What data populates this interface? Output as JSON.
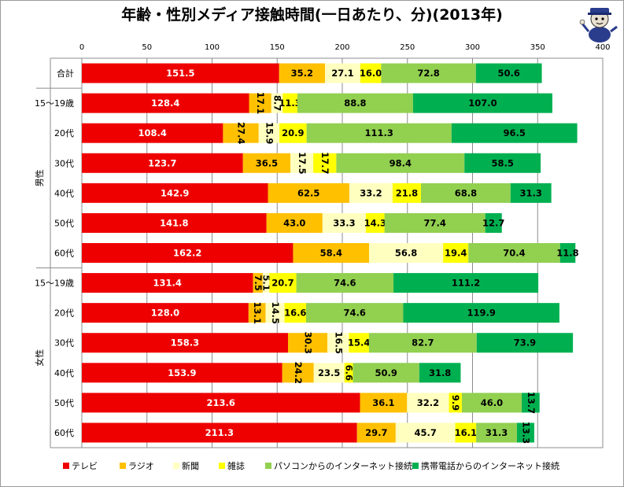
{
  "chart_data": {
    "type": "bar",
    "orientation": "horizontal",
    "stacked": true,
    "title": "年齢・性別メディア接触時間(一日あたり、分)(2013年)",
    "xlim": [
      0,
      400
    ],
    "xticks": [
      0,
      50,
      100,
      150,
      200,
      250,
      300,
      350,
      400
    ],
    "grid": true,
    "legend_position": "bottom",
    "groups": [
      {
        "label": "",
        "rows": [
          0
        ]
      },
      {
        "label": "男性",
        "rows": [
          1,
          2,
          3,
          4,
          5,
          6
        ]
      },
      {
        "label": "女性",
        "rows": [
          7,
          8,
          9,
          10,
          11,
          12
        ]
      }
    ],
    "categories": [
      "合計",
      "15〜19歳",
      "20代",
      "30代",
      "40代",
      "50代",
      "60代",
      "15〜19歳",
      "20代",
      "30代",
      "40代",
      "50代",
      "60代"
    ],
    "series": [
      {
        "name": "テレビ",
        "color": "#ee0000",
        "label_color": "#ffffff",
        "values": [
          151.5,
          128.4,
          108.4,
          123.7,
          142.9,
          141.8,
          162.2,
          131.4,
          128.0,
          158.3,
          153.9,
          213.6,
          211.3
        ]
      },
      {
        "name": "ラジオ",
        "color": "#ffc000",
        "label_color": "#000000",
        "values": [
          35.2,
          17.1,
          27.4,
          36.5,
          62.5,
          43.0,
          58.4,
          7.5,
          13.1,
          30.3,
          24.2,
          36.1,
          29.7
        ]
      },
      {
        "name": "新聞",
        "color": "#ffffc0",
        "label_color": "#000000",
        "values": [
          27.1,
          8.7,
          15.9,
          17.5,
          33.2,
          33.3,
          56.8,
          5.1,
          14.5,
          16.5,
          23.5,
          32.2,
          45.7
        ]
      },
      {
        "name": "雑誌",
        "color": "#ffff00",
        "label_color": "#000000",
        "values": [
          16.0,
          11.3,
          20.9,
          17.7,
          21.8,
          14.3,
          19.4,
          20.7,
          16.6,
          15.4,
          6.6,
          9.9,
          16.1
        ]
      },
      {
        "name": "パソコンからのインターネット接続",
        "color": "#92d050",
        "label_color": "#000000",
        "values": [
          72.8,
          88.8,
          111.3,
          98.4,
          68.8,
          77.4,
          70.4,
          74.6,
          74.6,
          82.7,
          50.9,
          46.0,
          31.3
        ]
      },
      {
        "name": "携帯電話からのインターネット接続",
        "color": "#00b050",
        "label_color": "#000000",
        "values": [
          50.6,
          107.0,
          96.5,
          58.5,
          31.3,
          12.7,
          11.8,
          111.2,
          119.9,
          73.9,
          31.8,
          13.7,
          13.3
        ]
      }
    ],
    "labels": [
      [
        "151.5",
        "35.2",
        "27.1",
        "16.0",
        "72.8",
        "50.6"
      ],
      [
        "128.4",
        "17.1",
        "8.7",
        "11.3",
        "88.8",
        "107.0"
      ],
      [
        "108.4",
        "27.4",
        "15.9",
        "20.9",
        "111.3",
        "96.5"
      ],
      [
        "123.7",
        "36.5",
        "17.5",
        "17.7",
        "98.4",
        "58.5"
      ],
      [
        "142.9",
        "62.5",
        "33.2",
        "21.8",
        "68.8",
        "31.3"
      ],
      [
        "141.8",
        "43.0",
        "33.3",
        "14.3",
        "77.4",
        "12.7"
      ],
      [
        "162.2",
        "58.4",
        "56.8",
        "19.4",
        "70.4",
        "11.8"
      ],
      [
        "131.4",
        "7.5",
        "5.1",
        "20.7",
        "74.6",
        "111.2"
      ],
      [
        "128.0",
        "13.1",
        "14.5",
        "16.6",
        "74.6",
        "119.9"
      ],
      [
        "158.3",
        "30.3",
        "16.5",
        "15.4",
        "82.7",
        "73.9"
      ],
      [
        "153.9",
        "24.2",
        "23.5",
        "6.6",
        "50.9",
        "31.8"
      ],
      [
        "213.6",
        "36.1",
        "32.2",
        "9.9",
        "46.0",
        "13.7"
      ],
      [
        "211.3",
        "29.7",
        "45.7",
        "16.1",
        "31.3",
        "13.3"
      ]
    ],
    "vertical_labels": [
      [
        false,
        false,
        false,
        false,
        false,
        false
      ],
      [
        false,
        true,
        true,
        false,
        false,
        false
      ],
      [
        false,
        true,
        true,
        false,
        false,
        false
      ],
      [
        false,
        false,
        true,
        true,
        false,
        false
      ],
      [
        false,
        false,
        false,
        false,
        false,
        false
      ],
      [
        false,
        false,
        false,
        false,
        false,
        false
      ],
      [
        false,
        false,
        false,
        false,
        false,
        false
      ],
      [
        false,
        true,
        true,
        false,
        false,
        false
      ],
      [
        false,
        true,
        true,
        false,
        false,
        false
      ],
      [
        false,
        true,
        true,
        false,
        false,
        false
      ],
      [
        false,
        true,
        false,
        true,
        false,
        false
      ],
      [
        false,
        false,
        false,
        true,
        false,
        true
      ],
      [
        false,
        false,
        false,
        false,
        false,
        true
      ]
    ]
  }
}
